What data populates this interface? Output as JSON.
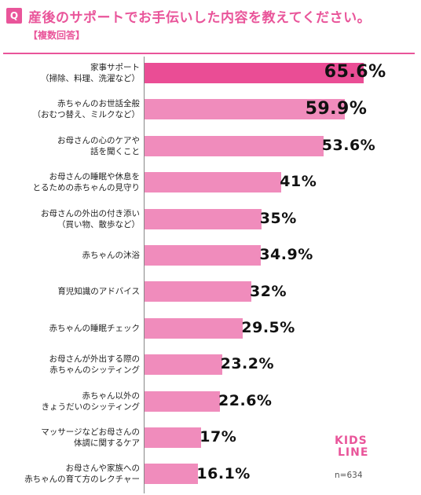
{
  "header": {
    "badge": "Q",
    "title": "産後のサポートでお手伝いした内容を教えてください。",
    "subtitle": "【複数回答】"
  },
  "logo": {
    "line1": "KIDS",
    "line2": "LINE"
  },
  "note": "n=634",
  "colors": {
    "accent": "#e9559a",
    "bar": "#f08cbc",
    "bar_top": "#ea4d95"
  },
  "chart_data": {
    "type": "bar",
    "orientation": "horizontal",
    "unit": "%",
    "xlim": [
      0,
      70
    ],
    "categories": [
      [
        "家事サポート",
        "（掃除、料理、洗濯など）"
      ],
      [
        "赤ちゃんのお世話全般",
        "（おむつ替え、ミルクなど）"
      ],
      [
        "お母さんの心のケアや",
        "話を聞くこと"
      ],
      [
        "お母さんの睡眠や休息を",
        "とるための赤ちゃんの見守り"
      ],
      [
        "お母さんの外出の付き添い",
        "（買い物、散歩など）"
      ],
      [
        "赤ちゃんの沐浴"
      ],
      [
        "育児知識のアドバイス"
      ],
      [
        "赤ちゃんの睡眠チェック"
      ],
      [
        "お母さんが外出する際の",
        "赤ちゃんのシッティング"
      ],
      [
        "赤ちゃん以外の",
        "きょうだいのシッティング"
      ],
      [
        "マッサージなどお母さんの",
        "体調に関するケア"
      ],
      [
        "お母さんや家族への",
        "赤ちゃんの育て方のレクチャー"
      ]
    ],
    "values": [
      65.6,
      59.9,
      53.6,
      41,
      35,
      34.9,
      32,
      29.5,
      23.2,
      22.6,
      17,
      16.1
    ],
    "value_labels": [
      "65.6%",
      "59.9%",
      "53.6%",
      "41%",
      "35%",
      "34.9%",
      "32%",
      "29.5%",
      "23.2%",
      "22.6%",
      "17%",
      "16.1%"
    ]
  }
}
